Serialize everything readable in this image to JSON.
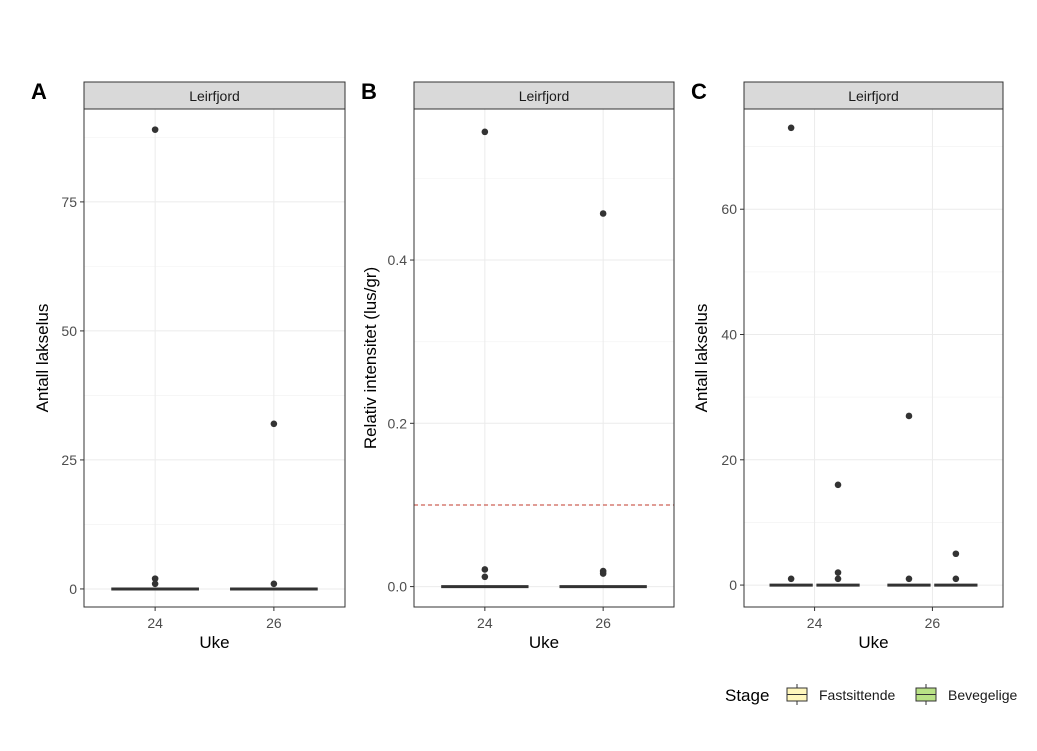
{
  "chart_data": [
    {
      "type": "box",
      "panel_label": "A",
      "facet": "Leirfjord",
      "xlabel": "Uke",
      "ylabel": "Antall lakselus",
      "x_categories": [
        "24",
        "26"
      ],
      "ylim": [
        -3.5,
        93
      ],
      "yticks": [
        0,
        25,
        50,
        75
      ],
      "ytick_labels": [
        "0",
        "25",
        "50",
        "75"
      ],
      "series": [
        {
          "name": "Fastsittende",
          "week": "24",
          "median": 0,
          "q1": 0,
          "q3": 0,
          "outliers": [
            89,
            2,
            1
          ]
        },
        {
          "name": "Fastsittende",
          "week": "26",
          "median": 0,
          "q1": 0,
          "q3": 0,
          "outliers": [
            32,
            1
          ]
        }
      ],
      "hline": null
    },
    {
      "type": "box",
      "panel_label": "B",
      "facet": "Leirfjord",
      "xlabel": "Uke",
      "ylabel": "Relativ intensitet (lus/gr)",
      "x_categories": [
        "24",
        "26"
      ],
      "ylim": [
        -0.025,
        0.585
      ],
      "yticks": [
        0.0,
        0.2,
        0.4
      ],
      "ytick_labels": [
        "0.0",
        "0.2",
        "0.4"
      ],
      "series": [
        {
          "name": "Fastsittende",
          "week": "24",
          "median": 0,
          "q1": 0,
          "q3": 0,
          "outliers": [
            0.557,
            0.021,
            0.012
          ]
        },
        {
          "name": "Fastsittende",
          "week": "26",
          "median": 0,
          "q1": 0,
          "q3": 0,
          "outliers": [
            0.457,
            0.019,
            0.016
          ]
        }
      ],
      "hline": {
        "y": 0.1,
        "color": "#c0392b",
        "style": "dashed"
      }
    },
    {
      "type": "box",
      "panel_label": "C",
      "facet": "Leirfjord",
      "xlabel": "Uke",
      "ylabel": "Antall lakselus",
      "x_categories": [
        "24",
        "26"
      ],
      "ylim": [
        -3.5,
        76
      ],
      "yticks": [
        0,
        20,
        40,
        60
      ],
      "ytick_labels": [
        "0",
        "20",
        "40",
        "60"
      ],
      "series": [
        {
          "name": "Fastsittende",
          "week": "24",
          "median": 0,
          "q1": 0,
          "q3": 0,
          "outliers": [
            73,
            1
          ]
        },
        {
          "name": "Bevegelige",
          "week": "24",
          "median": 0,
          "q1": 0,
          "q3": 0,
          "outliers": [
            16,
            2,
            1
          ]
        },
        {
          "name": "Fastsittende",
          "week": "26",
          "median": 0,
          "q1": 0,
          "q3": 0,
          "outliers": [
            27,
            1
          ]
        },
        {
          "name": "Bevegelige",
          "week": "26",
          "median": 0,
          "q1": 0,
          "q3": 0,
          "outliers": [
            5,
            1
          ]
        }
      ],
      "hline": null
    }
  ],
  "legend": {
    "title": "Stage",
    "items": [
      {
        "label": "Fastsittende",
        "color": "#fff7bc"
      },
      {
        "label": "Bevegelige",
        "color": "#b8e186"
      }
    ]
  },
  "colors": {
    "strip_fill": "#d9d9d9",
    "grid_major": "#ebebeb",
    "grid_minor": "#f5f5f5",
    "box_line": "#333333",
    "point": "#333333"
  }
}
